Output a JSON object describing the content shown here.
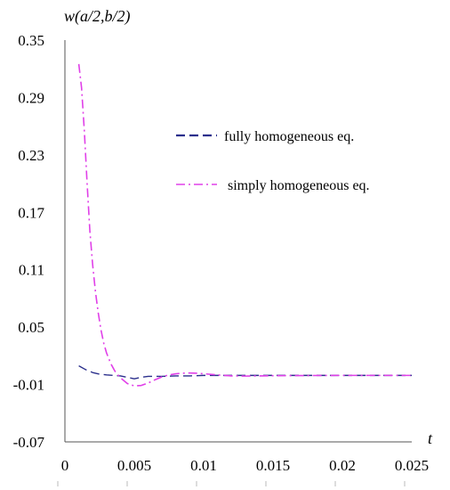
{
  "colors": {
    "fully": "#2b2f8c",
    "simply": "#e040e8",
    "axis": "#555555"
  },
  "chart_data": {
    "type": "line",
    "title": "",
    "ylabel": "w(a/2,b/2)",
    "xlabel": "t",
    "xlim": [
      0,
      0.025
    ],
    "ylim": [
      -0.07,
      0.35
    ],
    "xticks": [
      0,
      0.005,
      0.01,
      0.015,
      0.02,
      0.025
    ],
    "xtick_labels": [
      "0",
      "0.005",
      "0.01",
      "0.015",
      "0.02",
      "0.025"
    ],
    "yticks": [
      0.35,
      0.29,
      0.23,
      0.17,
      0.11,
      0.05,
      -0.01,
      -0.07
    ],
    "ytick_labels": [
      "0.35",
      "0.29",
      "0.23",
      "0.17",
      "0.11",
      "0.05",
      "-0.01",
      "-0.07"
    ],
    "grid": false,
    "legend_position": "upper-right",
    "series": [
      {
        "name": "fully homogeneous eq.",
        "style": "dashed",
        "color_key": "fully",
        "x": [
          0.001,
          0.0015,
          0.002,
          0.0025,
          0.003,
          0.0035,
          0.004,
          0.0045,
          0.005,
          0.0055,
          0.006,
          0.007,
          0.008,
          0.009,
          0.01,
          0.012,
          0.015,
          0.02,
          0.025
        ],
        "y": [
          0.0095,
          0.0055,
          0.0025,
          0.0008,
          0.0,
          -0.0005,
          -0.001,
          -0.0025,
          -0.004,
          -0.0025,
          -0.0015,
          -0.0015,
          -0.001,
          -0.001,
          -0.0005,
          -0.0005,
          -0.0005,
          -0.0005,
          -0.0005
        ]
      },
      {
        "name": "simply homogeneous eq.",
        "style": "dash-dot",
        "color_key": "simply",
        "x": [
          0.001,
          0.0012,
          0.0014,
          0.0016,
          0.0018,
          0.002,
          0.0022,
          0.0024,
          0.0026,
          0.0028,
          0.003,
          0.0033,
          0.0036,
          0.004,
          0.0045,
          0.005,
          0.0055,
          0.006,
          0.0065,
          0.007,
          0.0075,
          0.008,
          0.0085,
          0.009,
          0.0095,
          0.01,
          0.011,
          0.012,
          0.013,
          0.014,
          0.015,
          0.02,
          0.025
        ],
        "y": [
          0.325,
          0.3,
          0.255,
          0.2,
          0.15,
          0.115,
          0.087,
          0.065,
          0.047,
          0.033,
          0.023,
          0.012,
          0.004,
          -0.003,
          -0.009,
          -0.0115,
          -0.011,
          -0.0085,
          -0.005,
          -0.002,
          0.0,
          0.0012,
          0.0018,
          0.002,
          0.0018,
          0.0012,
          0.0,
          -0.001,
          -0.0012,
          -0.001,
          -0.0008,
          -0.0005,
          -0.0005
        ]
      }
    ]
  }
}
